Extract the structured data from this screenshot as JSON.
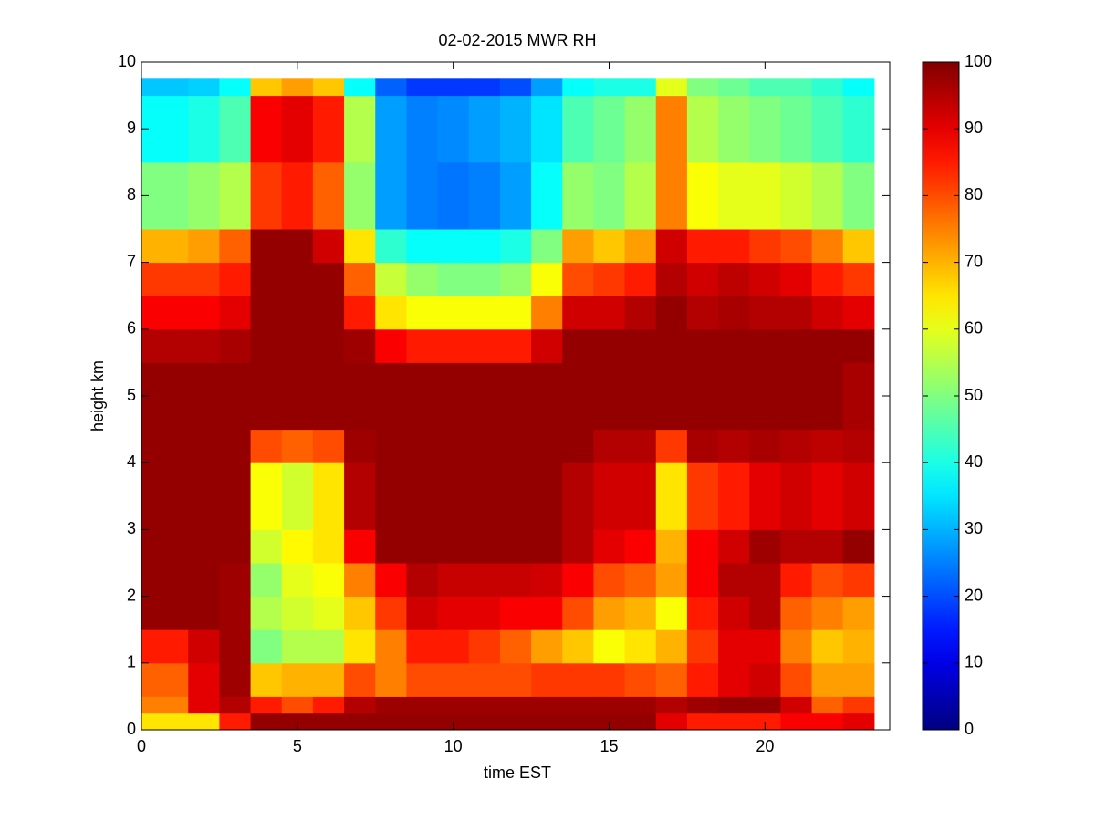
{
  "chart_data": {
    "type": "heatmap",
    "title": "02-02-2015 MWR RH",
    "xlabel": "time EST",
    "ylabel": "height km",
    "colormap": "jet",
    "clim": [
      0,
      100
    ],
    "xlim": [
      0,
      24
    ],
    "ylim": [
      0,
      10
    ],
    "xticks": [
      0,
      5,
      10,
      15,
      20
    ],
    "yticks": [
      0,
      1,
      2,
      3,
      4,
      5,
      6,
      7,
      8,
      9,
      10
    ],
    "colorbar_ticks": [
      0,
      10,
      20,
      30,
      40,
      50,
      60,
      70,
      80,
      90,
      100
    ],
    "x_edges": [
      0,
      1.5,
      2.5,
      3.5,
      4.5,
      5.5,
      6.5,
      7.5,
      8.5,
      9.5,
      10.5,
      11.5,
      12.5,
      13.5,
      14.5,
      15.5,
      16.5,
      17.5,
      18.5,
      19.5,
      20.5,
      21.5,
      22.5,
      23.5
    ],
    "y_edges": [
      0,
      0.25,
      0.5,
      1,
      1.5,
      2,
      2.5,
      3,
      4,
      4.5,
      5.5,
      6,
      6.5,
      7,
      7.5,
      8.5,
      9.5,
      9.75
    ],
    "z": [
      [
        65,
        65,
        85,
        98,
        98,
        98,
        98,
        98,
        98,
        98,
        98,
        98,
        98,
        98,
        98,
        98,
        90,
        85,
        85,
        85,
        88,
        88,
        90
      ],
      [
        75,
        90,
        95,
        85,
        80,
        85,
        95,
        97,
        97,
        97,
        97,
        97,
        97,
        97,
        97,
        97,
        95,
        97,
        98,
        98,
        92,
        78,
        82
      ],
      [
        78,
        90,
        97,
        68,
        70,
        70,
        80,
        75,
        80,
        80,
        80,
        80,
        82,
        82,
        82,
        80,
        78,
        85,
        90,
        92,
        80,
        72,
        72
      ],
      [
        85,
        92,
        97,
        50,
        55,
        55,
        65,
        75,
        85,
        85,
        82,
        78,
        72,
        68,
        62,
        65,
        70,
        82,
        90,
        90,
        75,
        68,
        70
      ],
      [
        98,
        98,
        97,
        55,
        58,
        60,
        68,
        82,
        92,
        90,
        90,
        88,
        88,
        80,
        72,
        70,
        62,
        85,
        92,
        95,
        78,
        75,
        72
      ],
      [
        98,
        98,
        97,
        52,
        60,
        62,
        75,
        88,
        95,
        93,
        93,
        93,
        92,
        88,
        80,
        78,
        72,
        88,
        95,
        95,
        85,
        80,
        82
      ],
      [
        98,
        98,
        98,
        58,
        63,
        65,
        88,
        98,
        98,
        98,
        98,
        98,
        98,
        95,
        90,
        88,
        70,
        88,
        92,
        97,
        95,
        95,
        98
      ],
      [
        98,
        98,
        98,
        62,
        58,
        65,
        95,
        98,
        98,
        98,
        98,
        98,
        98,
        95,
        92,
        92,
        65,
        82,
        85,
        90,
        92,
        90,
        92
      ],
      [
        98,
        98,
        98,
        80,
        78,
        80,
        97,
        98,
        98,
        98,
        98,
        98,
        98,
        98,
        95,
        95,
        82,
        96,
        95,
        96,
        95,
        94,
        95
      ],
      [
        98,
        98,
        98,
        98,
        98,
        98,
        98,
        98,
        98,
        98,
        98,
        98,
        98,
        98,
        98,
        98,
        98,
        98,
        98,
        98,
        98,
        98,
        96
      ],
      [
        95,
        95,
        96,
        98,
        98,
        98,
        97,
        88,
        85,
        85,
        85,
        85,
        92,
        98,
        98,
        98,
        98,
        98,
        98,
        98,
        98,
        98,
        98
      ],
      [
        88,
        88,
        90,
        98,
        98,
        98,
        85,
        65,
        62,
        62,
        62,
        62,
        75,
        92,
        92,
        95,
        98,
        95,
        96,
        95,
        95,
        92,
        90
      ],
      [
        82,
        82,
        85,
        98,
        98,
        98,
        78,
        57,
        52,
        50,
        50,
        52,
        62,
        80,
        82,
        85,
        95,
        92,
        94,
        92,
        90,
        85,
        82
      ],
      [
        70,
        72,
        78,
        98,
        98,
        92,
        65,
        42,
        38,
        38,
        38,
        40,
        50,
        72,
        68,
        72,
        92,
        85,
        85,
        82,
        80,
        75,
        68
      ],
      [
        50,
        52,
        55,
        82,
        85,
        78,
        52,
        28,
        25,
        24,
        25,
        28,
        38,
        52,
        50,
        55,
        75,
        62,
        60,
        60,
        58,
        55,
        50
      ],
      [
        38,
        40,
        45,
        88,
        90,
        85,
        55,
        28,
        25,
        26,
        28,
        30,
        35,
        45,
        48,
        52,
        75,
        55,
        52,
        50,
        48,
        45,
        42
      ],
      [
        32,
        33,
        38,
        68,
        72,
        68,
        38,
        22,
        18,
        18,
        18,
        20,
        28,
        38,
        40,
        40,
        60,
        50,
        48,
        45,
        45,
        42,
        38
      ]
    ]
  }
}
